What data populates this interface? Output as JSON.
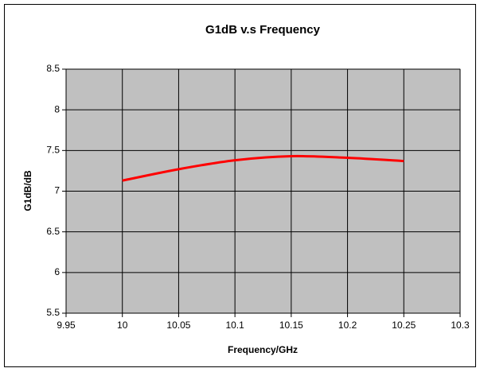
{
  "chart_data": {
    "type": "line",
    "title": "G1dB  v.s  Frequency",
    "xlabel": "Frequency/GHz",
    "ylabel": "G1dB/dB",
    "x": [
      10,
      10.05,
      10.1,
      10.15,
      10.2,
      10.25
    ],
    "series": [
      {
        "name": "G1dB",
        "color": "#ff0000",
        "values": [
          7.13,
          7.27,
          7.38,
          7.43,
          7.41,
          7.37
        ]
      }
    ],
    "xlim": [
      9.95,
      10.3
    ],
    "xticks": [
      9.95,
      10,
      10.05,
      10.1,
      10.15,
      10.2,
      10.25,
      10.3
    ],
    "ylim": [
      5.5,
      8.5
    ],
    "yticks": [
      5.5,
      6,
      6.5,
      7,
      7.5,
      8,
      8.5
    ],
    "grid": true,
    "plot_background": "#c0c0c0"
  }
}
